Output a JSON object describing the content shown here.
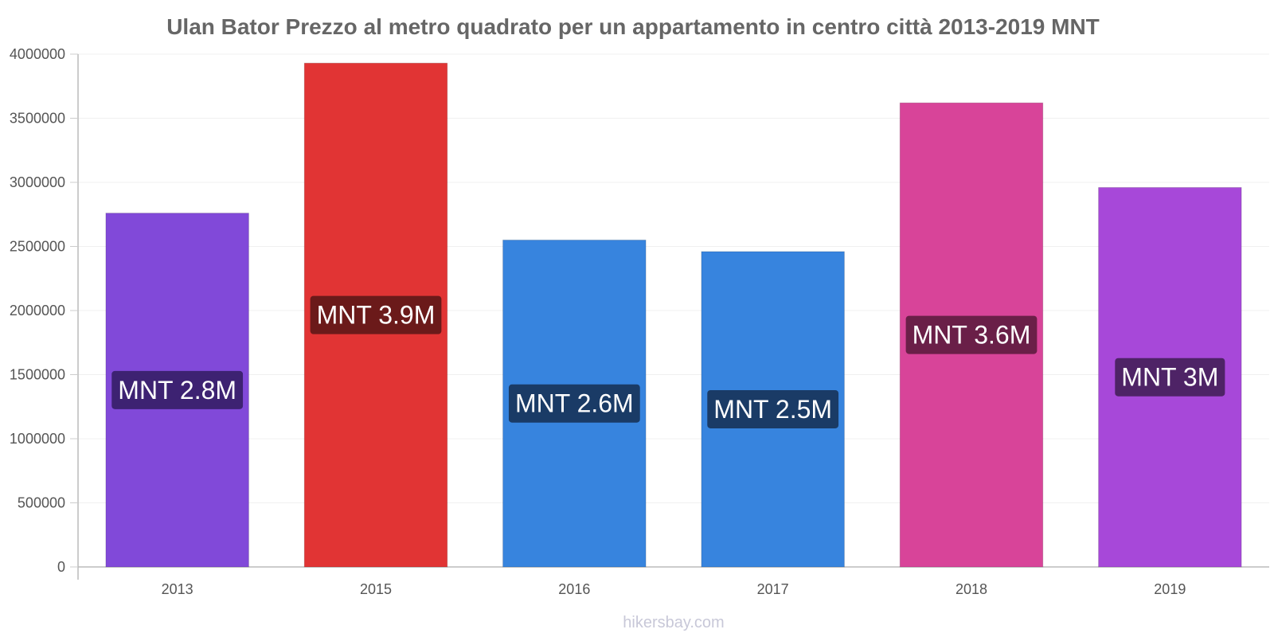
{
  "chart_data": {
    "type": "bar",
    "title": "Ulan Bator Prezzo al metro quadrato per un appartamento in centro città 2013-2019 MNT",
    "xlabel": "",
    "ylabel": "",
    "ylim": [
      0,
      4000000
    ],
    "yticks": [
      "0",
      "500000",
      "1000000",
      "1500000",
      "2000000",
      "2500000",
      "3000000",
      "3500000",
      "4000000"
    ],
    "ytick_values": [
      0,
      500000,
      1000000,
      1500000,
      2000000,
      2500000,
      3000000,
      3500000,
      4000000
    ],
    "categories": [
      "2013",
      "2015",
      "2016",
      "2017",
      "2018",
      "2019"
    ],
    "values": [
      2760000,
      3930000,
      2550000,
      2460000,
      3620000,
      2960000
    ],
    "data_labels": [
      "MNT 2.8M",
      "MNT 3.9M",
      "MNT 2.6M",
      "MNT 2.5M",
      "MNT 3.6M",
      "MNT 3M"
    ],
    "bar_colors": [
      "#8149d9",
      "#e13434",
      "#3784de",
      "#3784de",
      "#d84499",
      "#a748d9"
    ],
    "label_colors": [
      "#3d2272",
      "#6b1a1a",
      "#1a3b66",
      "#1a3b66",
      "#6a1f48",
      "#4e2366"
    ],
    "grid": true,
    "legend": "none"
  },
  "watermark": "hikersbay.com"
}
